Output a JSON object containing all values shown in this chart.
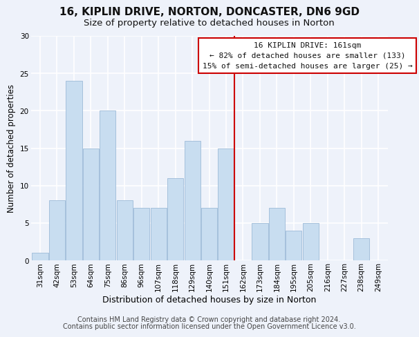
{
  "title": "16, KIPLIN DRIVE, NORTON, DONCASTER, DN6 9GD",
  "subtitle": "Size of property relative to detached houses in Norton",
  "xlabel": "Distribution of detached houses by size in Norton",
  "ylabel": "Number of detached properties",
  "categories": [
    "31sqm",
    "42sqm",
    "53sqm",
    "64sqm",
    "75sqm",
    "86sqm",
    "96sqm",
    "107sqm",
    "118sqm",
    "129sqm",
    "140sqm",
    "151sqm",
    "162sqm",
    "173sqm",
    "184sqm",
    "195sqm",
    "205sqm",
    "216sqm",
    "227sqm",
    "238sqm",
    "249sqm"
  ],
  "values": [
    1,
    8,
    24,
    15,
    20,
    8,
    7,
    7,
    11,
    16,
    7,
    15,
    0,
    5,
    7,
    4,
    5,
    0,
    0,
    3,
    0
  ],
  "bar_color": "#c8ddf0",
  "bar_edge_color": "#9dbad8",
  "vline_color": "#cc0000",
  "ylim": [
    0,
    30
  ],
  "yticks": [
    0,
    5,
    10,
    15,
    20,
    25,
    30
  ],
  "annotation_title": "16 KIPLIN DRIVE: 161sqm",
  "annotation_line1": "← 82% of detached houses are smaller (133)",
  "annotation_line2": "15% of semi-detached houses are larger (25) →",
  "annotation_box_color": "#ffffff",
  "annotation_box_edge": "#cc0000",
  "footnote1": "Contains HM Land Registry data © Crown copyright and database right 2024.",
  "footnote2": "Contains public sector information licensed under the Open Government Licence v3.0.",
  "bg_color": "#eef2fa",
  "grid_color": "#ffffff",
  "title_fontsize": 11,
  "subtitle_fontsize": 9.5,
  "ylabel_fontsize": 8.5,
  "xlabel_fontsize": 9,
  "tick_fontsize": 7.5,
  "annotation_fontsize": 8,
  "footnote_fontsize": 7
}
